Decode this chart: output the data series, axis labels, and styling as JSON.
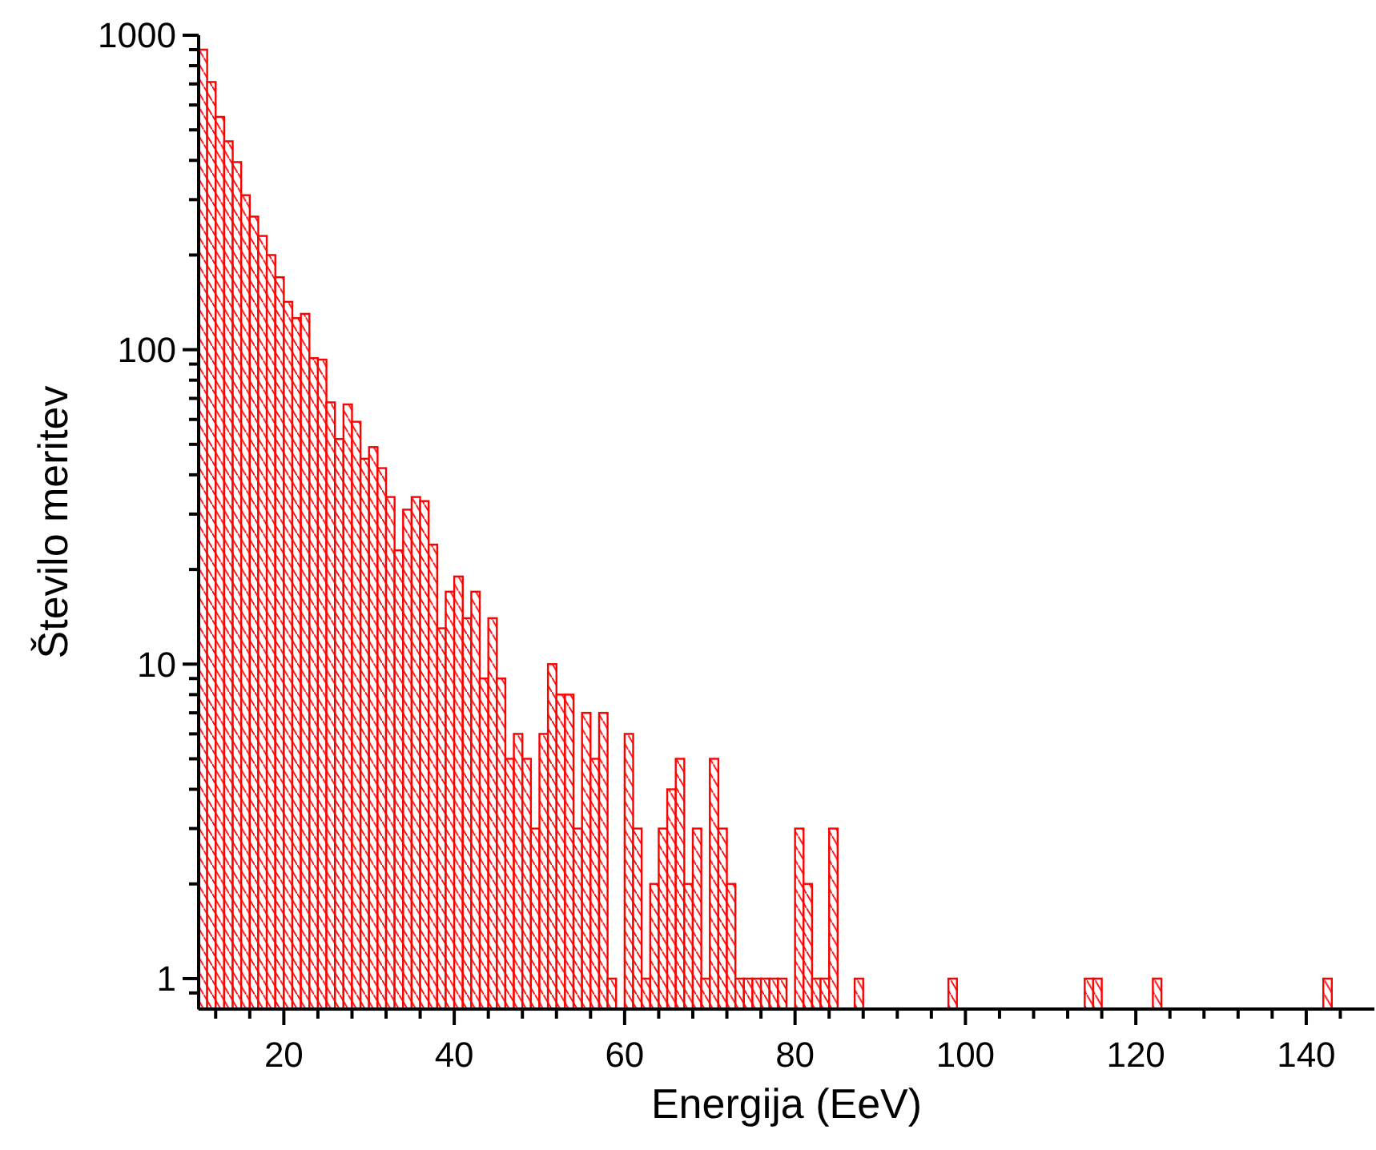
{
  "chart_data": {
    "type": "histogram",
    "xlabel": "Energija (EeV)",
    "ylabel": "Število meritev",
    "log": "y",
    "color": "#ff0000",
    "bins": [
      10,
      11,
      12,
      13,
      14,
      15,
      16,
      17,
      18,
      19,
      20,
      21,
      22,
      23,
      24,
      25,
      26,
      27,
      28,
      29,
      30,
      31,
      32,
      33,
      34,
      35,
      36,
      37,
      38,
      39,
      40,
      41,
      42,
      43,
      44,
      45,
      46,
      47,
      48,
      49,
      50,
      51,
      52,
      53,
      54,
      55,
      56,
      57,
      58,
      59,
      60,
      61,
      62,
      63,
      64,
      65,
      66,
      67,
      68,
      69,
      70,
      71,
      72,
      73,
      74,
      75,
      76,
      77,
      78,
      79,
      80,
      81,
      82,
      83,
      84,
      85,
      86,
      87,
      88,
      89,
      90,
      91,
      92,
      93,
      94,
      95,
      96,
      97,
      98,
      99,
      100,
      101,
      102,
      103,
      104,
      105,
      106,
      107,
      108,
      109,
      110,
      111,
      112,
      113,
      114,
      115,
      116,
      117,
      118,
      119,
      120,
      121,
      122,
      123,
      124,
      125,
      126,
      127,
      128,
      129,
      130,
      131,
      132,
      133,
      134,
      135,
      136,
      137,
      138,
      139,
      140,
      141,
      142,
      143
    ],
    "values": [
      900,
      710,
      550,
      460,
      395,
      310,
      265,
      230,
      200,
      170,
      142,
      126,
      130,
      94,
      93,
      68,
      52,
      67,
      59,
      45,
      49,
      42,
      34,
      23,
      31,
      34,
      33,
      24,
      13,
      17,
      19,
      14,
      17,
      9,
      14,
      9,
      5,
      6,
      5,
      3,
      6,
      10,
      8,
      8,
      3,
      7,
      5,
      7,
      1,
      null,
      6,
      3,
      1,
      2,
      3,
      4,
      5,
      2,
      3,
      1,
      5,
      3,
      2,
      1,
      1,
      1,
      1,
      1,
      1,
      null,
      3,
      2,
      1,
      1,
      3,
      null,
      null,
      1,
      null,
      null,
      null,
      null,
      null,
      null,
      null,
      null,
      null,
      null,
      1,
      null,
      null,
      null,
      null,
      null,
      null,
      null,
      null,
      null,
      null,
      null,
      null,
      null,
      null,
      null,
      1,
      1,
      null,
      null,
      null,
      null,
      null,
      null,
      1,
      null,
      null,
      null,
      null,
      null,
      null,
      null,
      null,
      null,
      null,
      null,
      null,
      null,
      null,
      null,
      null,
      null,
      null,
      null,
      1
    ],
    "xlim": [
      10,
      148
    ],
    "xticks": [
      {
        "value": 12,
        "label": null
      },
      {
        "value": 16,
        "label": null
      },
      20,
      {
        "value": 24,
        "label": null
      },
      {
        "value": 28,
        "label": null
      },
      {
        "value": 32,
        "label": null
      },
      {
        "value": 36,
        "label": null
      },
      40,
      {
        "value": 44,
        "label": null
      },
      {
        "value": 48,
        "label": null
      },
      {
        "value": 52,
        "label": null
      },
      {
        "value": 56,
        "label": null
      },
      60,
      {
        "value": 64,
        "label": null
      },
      {
        "value": 68,
        "label": null
      },
      {
        "value": 72,
        "label": null
      },
      {
        "value": 76,
        "label": null
      },
      80,
      {
        "value": 84,
        "label": null
      },
      {
        "value": 88,
        "label": null
      },
      {
        "value": 92,
        "label": null
      },
      {
        "value": 96,
        "label": null
      },
      100,
      {
        "value": 104,
        "label": null
      },
      {
        "value": 108,
        "label": null
      },
      {
        "value": 112,
        "label": null
      },
      {
        "value": 116,
        "label": null
      },
      120,
      {
        "value": 124,
        "label": null
      },
      {
        "value": 128,
        "label": null
      },
      {
        "value": 132,
        "label": null
      },
      {
        "value": 136,
        "label": null
      },
      140,
      {
        "value": 144,
        "label": null
      }
    ],
    "ylim": [
      0.8,
      1000
    ],
    "yticks": [
      {
        "value": 0.9,
        "label": null
      },
      1,
      {
        "value": 2,
        "label": null
      },
      {
        "value": 3,
        "label": null
      },
      {
        "value": 4,
        "label": null
      },
      {
        "value": 5,
        "label": null
      },
      {
        "value": 6,
        "label": null
      },
      {
        "value": 7,
        "label": null
      },
      {
        "value": 8,
        "label": null
      },
      {
        "value": 9,
        "label": null
      },
      10,
      {
        "value": 20,
        "label": null
      },
      {
        "value": 30,
        "label": null
      },
      {
        "value": 40,
        "label": null
      },
      {
        "value": 50,
        "label": null
      },
      {
        "value": 60,
        "label": null
      },
      {
        "value": 70,
        "label": null
      },
      {
        "value": 80,
        "label": null
      },
      {
        "value": 90,
        "label": null
      },
      100,
      {
        "value": 200,
        "label": null
      },
      {
        "value": 300,
        "label": null
      },
      {
        "value": 400,
        "label": null
      },
      {
        "value": 500,
        "label": null
      },
      {
        "value": 600,
        "label": null
      },
      {
        "value": 700,
        "label": null
      },
      {
        "value": 800,
        "label": null
      },
      {
        "value": 900,
        "label": null
      },
      1000
    ]
  }
}
